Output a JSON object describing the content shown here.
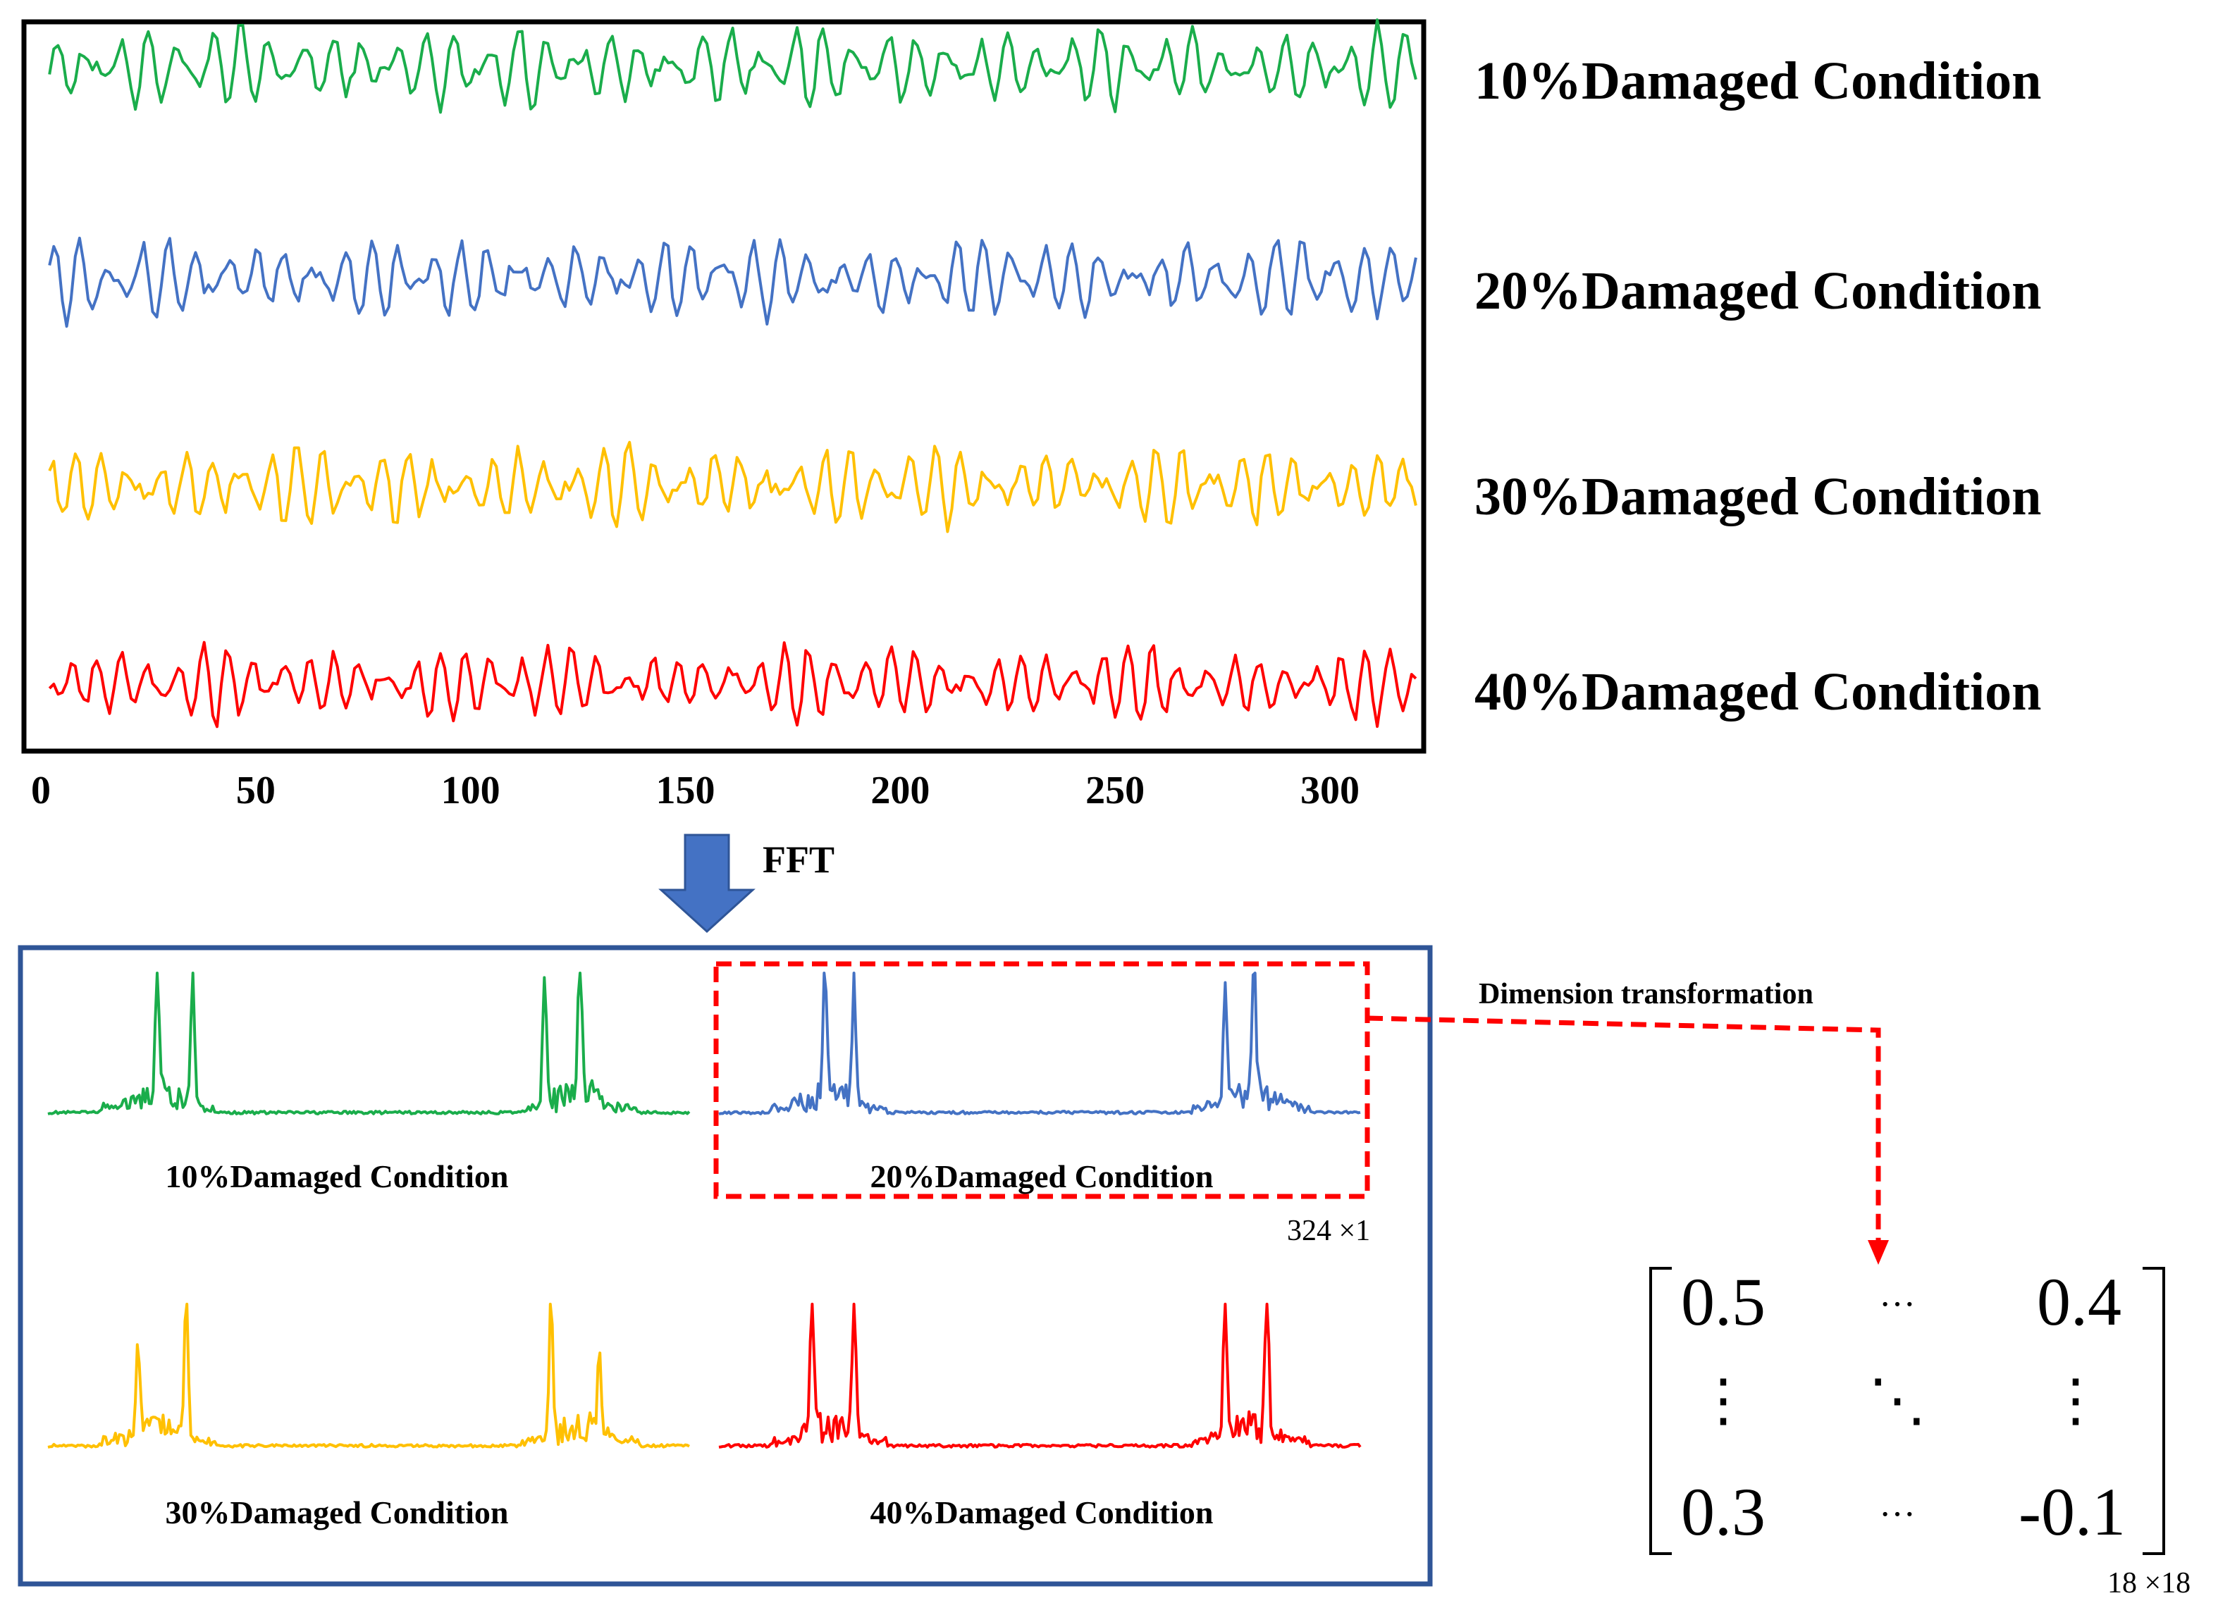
{
  "chart_data": {
    "type": "line",
    "title": "",
    "xlabel": "",
    "ylabel": "",
    "xlim": [
      0,
      318
    ],
    "x_ticks": [
      "0",
      "50",
      "100",
      "150",
      "200",
      "250",
      "300"
    ],
    "series": [
      {
        "name": "10%Damaged Condition",
        "color": "#1aad4b",
        "n_points": 318
      },
      {
        "name": "20%Damaged Condition",
        "color": "#4472c4",
        "n_points": 318
      },
      {
        "name": "30%Damaged Condition",
        "color": "#ffc000",
        "n_points": 318
      },
      {
        "name": "40%Damaged Condition",
        "color": "#ff0000",
        "n_points": 318
      }
    ]
  },
  "top_labels": [
    "10%Damaged Condition",
    "20%Damaged Condition",
    "30%Damaged Condition",
    "40%Damaged Condition"
  ],
  "arrow_label": "FFT",
  "spectra": [
    {
      "label": "10%Damaged Condition",
      "color": "#1aad4b"
    },
    {
      "label": "20%Damaged Condition",
      "color": "#4472c4"
    },
    {
      "label": "30%Damaged Condition",
      "color": "#ffc000"
    },
    {
      "label": "40%Damaged Condition",
      "color": "#ff0000"
    }
  ],
  "vector_size": "324 ×1",
  "transform_label": "Dimension transformation",
  "matrix": {
    "top_left": "0.5",
    "top_right": "0.4",
    "bottom_left": "0.3",
    "bottom_right": "-0.1",
    "hdots": "···",
    "vdots": "⋮",
    "ddots": "⋱",
    "size": "18 ×18"
  },
  "colors": {
    "frame_top": "#000000",
    "frame_bottom": "#2f5597",
    "arrow": "#4472c4",
    "dashed": "#ff0000"
  }
}
